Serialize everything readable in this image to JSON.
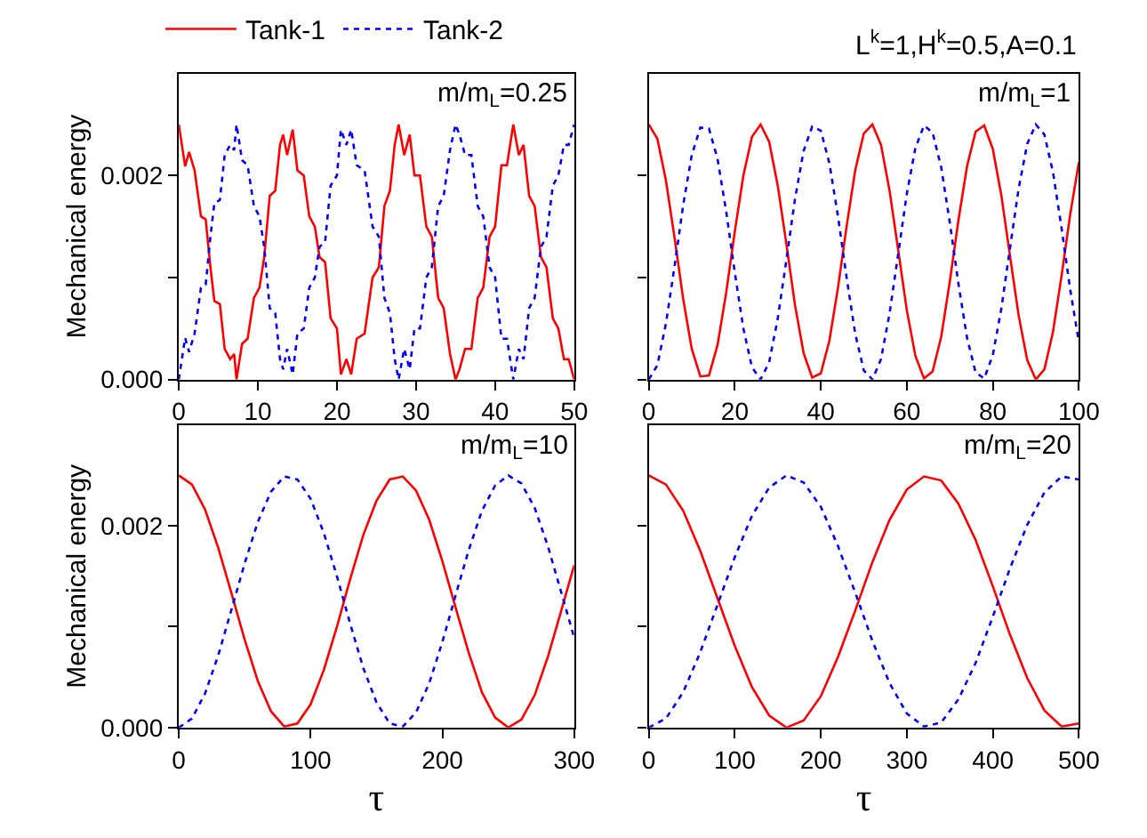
{
  "chart_data": [
    {
      "type": "line",
      "legend": "top left",
      "ylabel": "Mechanical energy",
      "annotations": [
        "m/m$_{L}$=0.25"
      ],
      "xlim": [
        0,
        50
      ],
      "xticks": [
        0,
        10,
        20,
        30,
        40,
        50
      ],
      "ylim": [
        0,
        0.003
      ],
      "yticks": [
        {
          "value": 0,
          "label": "0.000"
        },
        {
          "value": 0.001,
          "label": null
        },
        {
          "value": 0.002,
          "label": "0.002"
        }
      ],
      "x": [
        0,
        0.8,
        1.3,
        2.0,
        2.8,
        3.4,
        4.0,
        4.5,
        5.2,
        5.8,
        6.5,
        7.0,
        7.3,
        8.0,
        8.7,
        9.5,
        10.2,
        10.8,
        11.5,
        12.2,
        12.8,
        13.2,
        13.7,
        14.4,
        15.0,
        15.8,
        16.5,
        17.2,
        17.8,
        18.5,
        19.2,
        20.0,
        20.5,
        21.2,
        21.8,
        22.5,
        23.5,
        24.5,
        25.3,
        26.0,
        26.7,
        27.3,
        27.8,
        28.5,
        29.2,
        29.8,
        30.5,
        31.3,
        32.0,
        32.8,
        33.5,
        34.3,
        35.0,
        35.5,
        36.2,
        37.0,
        37.8,
        38.5,
        39.3,
        40.0,
        40.8,
        41.5,
        42.3,
        43.0,
        43.6,
        44.3,
        45.0,
        45.8,
        46.5,
        47.3,
        48.0,
        48.7,
        49.3,
        50
      ],
      "series": [
        {
          "name": "Tank-1",
          "color": "#ff0000",
          "line_style": "solid",
          "values": [
            0.0025,
            0.00209,
            0.00223,
            0.00205,
            0.0016,
            0.00157,
            0.0011,
            0.00077,
            0.00074,
            0.0003,
            0.0002,
            0.00025,
            0.0,
            0.00035,
            0.0004,
            0.0008,
            0.0009,
            0.0012,
            0.0018,
            0.00185,
            0.0023,
            0.0024,
            0.0022,
            0.00245,
            0.00205,
            0.002,
            0.0016,
            0.0015,
            0.0012,
            0.00115,
            0.0006,
            0.0005,
            5e-05,
            0.0002,
            5e-05,
            0.0004,
            0.00045,
            0.001,
            0.0011,
            0.0017,
            0.00185,
            0.0023,
            0.0025,
            0.0022,
            0.0024,
            0.002,
            0.002,
            0.0015,
            0.0014,
            0.0008,
            0.0007,
            0.00025,
            0.0,
            0.0001,
            0.0003,
            0.0003,
            0.0008,
            0.0009,
            0.0014,
            0.0015,
            0.0021,
            0.0021,
            0.0025,
            0.0022,
            0.0023,
            0.0018,
            0.0017,
            0.0012,
            0.0011,
            0.0006,
            0.0005,
            0.0002,
            0.0002,
            0.0
          ]
        },
        {
          "name": "Tank-2",
          "color": "#0000ff",
          "line_style": "dotted",
          "values": [
            0.0,
            0.00041,
            0.00027,
            0.00045,
            0.0009,
            0.00093,
            0.0014,
            0.00173,
            0.00176,
            0.0022,
            0.0023,
            0.00225,
            0.0025,
            0.00215,
            0.0021,
            0.0017,
            0.0016,
            0.0013,
            0.0007,
            0.00065,
            0.0002,
            0.0001,
            0.0003,
            5e-05,
            0.00045,
            0.0005,
            0.0009,
            0.001,
            0.0013,
            0.00135,
            0.0019,
            0.002,
            0.00245,
            0.0023,
            0.00245,
            0.0021,
            0.00205,
            0.0015,
            0.0014,
            0.0008,
            0.00065,
            0.0002,
            0.0,
            0.0003,
            0.0001,
            0.0005,
            0.0005,
            0.001,
            0.0011,
            0.0017,
            0.0018,
            0.00225,
            0.0025,
            0.0024,
            0.0022,
            0.0022,
            0.0017,
            0.0016,
            0.0011,
            0.001,
            0.0004,
            0.0004,
            0.0,
            0.0003,
            0.0002,
            0.0007,
            0.0008,
            0.0013,
            0.0014,
            0.0019,
            0.002,
            0.0023,
            0.0023,
            0.0025
          ]
        }
      ]
    },
    {
      "type": "line",
      "tick_labels": "x",
      "annotations": [
        "m/m$_{L}$=1",
        "L$^{k}$=1,H$^{k}$=0.5,A=0.1"
      ],
      "xlim": [
        0,
        100
      ],
      "xticks": [
        0,
        20,
        40,
        60,
        80,
        100
      ],
      "ylim": [
        0,
        0.003
      ],
      "yticks": [
        {
          "value": 0,
          "label": null
        },
        {
          "value": 0.001,
          "label": null
        },
        {
          "value": 0.002,
          "label": null
        }
      ],
      "x": [
        0,
        2,
        4,
        6,
        8,
        10,
        12,
        14,
        16,
        18,
        20,
        22,
        24,
        26,
        28,
        30,
        32,
        34,
        36,
        38,
        40,
        42,
        44,
        46,
        48,
        50,
        52,
        54,
        56,
        58,
        60,
        62,
        64,
        66,
        68,
        70,
        72,
        74,
        76,
        78,
        80,
        82,
        84,
        86,
        88,
        90,
        92,
        94,
        96,
        98,
        100
      ],
      "series": [
        {
          "color": "#ff0000",
          "line_style": "solid",
          "values": [
            0.0025,
            0.00236,
            0.00195,
            0.00139,
            0.00079,
            0.0003,
            3e-05,
            4e-05,
            0.00034,
            0.00085,
            0.00145,
            0.002,
            0.00238,
            0.0025,
            0.00233,
            0.0019,
            0.00133,
            0.00073,
            0.00026,
            2e-05,
            6e-05,
            0.00038,
            0.0009,
            0.0015,
            0.00205,
            0.00241,
            0.0025,
            0.0023,
            0.00185,
            0.00127,
            0.00068,
            0.00023,
            1e-05,
            8e-05,
            0.00042,
            0.00096,
            0.00156,
            0.00209,
            0.00243,
            0.00249,
            0.00226,
            0.0018,
            0.00121,
            0.00063,
            0.00019,
            0.0,
            0.0001,
            0.00047,
            0.00102,
            0.00162,
            0.00213
          ]
        },
        {
          "color": "#0000ff",
          "line_style": "dotted",
          "values": [
            0.0,
            0.00014,
            0.00055,
            0.00111,
            0.00171,
            0.0022,
            0.00247,
            0.00246,
            0.00216,
            0.00165,
            0.00105,
            0.0005,
            0.00012,
            0.0,
            0.00017,
            0.0006,
            0.00117,
            0.00177,
            0.00224,
            0.00248,
            0.00244,
            0.00212,
            0.0016,
            0.001,
            0.00045,
            9e-05,
            0.0,
            0.0002,
            0.00065,
            0.00123,
            0.00182,
            0.00227,
            0.00249,
            0.00242,
            0.00208,
            0.00154,
            0.00094,
            0.00041,
            7e-05,
            1e-05,
            0.00024,
            0.0007,
            0.00129,
            0.00187,
            0.00231,
            0.0025,
            0.0024,
            0.00203,
            0.00148,
            0.00088,
            0.00037
          ]
        }
      ]
    },
    {
      "type": "line",
      "ylabel": "Mechanical energy",
      "xlabel": "τ",
      "annotations": [
        "m/m$_{L}$=10"
      ],
      "xlim": [
        0,
        300
      ],
      "xticks": [
        0,
        100,
        200,
        300
      ],
      "ylim": [
        0,
        0.003
      ],
      "yticks": [
        {
          "value": 0,
          "label": "0.000"
        },
        {
          "value": 0.001,
          "label": null
        },
        {
          "value": 0.002,
          "label": "0.002"
        }
      ],
      "x": [
        0,
        10,
        20,
        30,
        40,
        50,
        60,
        70,
        80,
        90,
        100,
        110,
        120,
        130,
        140,
        150,
        160,
        170,
        180,
        190,
        200,
        210,
        220,
        230,
        240,
        250,
        260,
        270,
        280,
        290,
        300
      ],
      "series": [
        {
          "color": "#ff0000",
          "line_style": "solid",
          "values": [
            0.0025,
            0.00241,
            0.00216,
            0.00178,
            0.00133,
            0.00087,
            0.00046,
            0.00016,
            1e-05,
            4e-05,
            0.00023,
            0.00057,
            0.001,
            0.00147,
            0.00191,
            0.00225,
            0.00246,
            0.00249,
            0.00235,
            0.00206,
            0.00165,
            0.00119,
            0.00074,
            0.00035,
            0.0001,
            0.0,
            8e-05,
            0.00032,
            0.0007,
            0.00115,
            0.00161
          ]
        },
        {
          "color": "#0000ff",
          "line_style": "dotted",
          "values": [
            0.0,
            9e-05,
            0.00034,
            0.00072,
            0.00117,
            0.00163,
            0.00204,
            0.00234,
            0.00249,
            0.00246,
            0.00227,
            0.00193,
            0.0015,
            0.00103,
            0.00059,
            0.00025,
            4e-05,
            1e-05,
            0.00015,
            0.00044,
            0.00085,
            0.00131,
            0.00176,
            0.00215,
            0.0024,
            0.0025,
            0.00242,
            0.00218,
            0.0018,
            0.00135,
            0.00089
          ]
        }
      ]
    },
    {
      "type": "line",
      "tick_labels": "x",
      "xlabel": "τ",
      "annotations": [
        "m/m$_{L}$=20"
      ],
      "xlim": [
        0,
        500
      ],
      "xticks": [
        0,
        100,
        200,
        300,
        400,
        500
      ],
      "ylim": [
        0,
        0.003
      ],
      "yticks": [
        {
          "value": 0,
          "label": null
        },
        {
          "value": 0.001,
          "label": null
        },
        {
          "value": 0.002,
          "label": null
        }
      ],
      "x": [
        0,
        20,
        40,
        60,
        80,
        100,
        120,
        140,
        160,
        180,
        200,
        220,
        240,
        260,
        280,
        300,
        320,
        340,
        360,
        380,
        400,
        420,
        440,
        460,
        480,
        500
      ],
      "series": [
        {
          "color": "#ff0000",
          "line_style": "solid",
          "values": [
            0.0025,
            0.00241,
            0.00215,
            0.00175,
            0.00128,
            0.00081,
            0.0004,
            0.00012,
            0.0,
            7e-05,
            0.00031,
            0.0007,
            0.00116,
            0.00164,
            0.00206,
            0.00236,
            0.00249,
            0.00245,
            0.00222,
            0.00186,
            0.0014,
            0.00092,
            0.00049,
            0.00017,
            1e-05,
            4e-05
          ]
        },
        {
          "color": "#0000ff",
          "line_style": "dotted",
          "values": [
            0.0,
            9e-05,
            0.00035,
            0.00075,
            0.00122,
            0.00169,
            0.0021,
            0.00238,
            0.0025,
            0.00243,
            0.00219,
            0.0018,
            0.00134,
            0.00086,
            0.00044,
            0.00014,
            1e-05,
            5e-05,
            0.00028,
            0.00064,
            0.0011,
            0.00158,
            0.00201,
            0.00233,
            0.00249,
            0.00246
          ]
        }
      ]
    }
  ]
}
